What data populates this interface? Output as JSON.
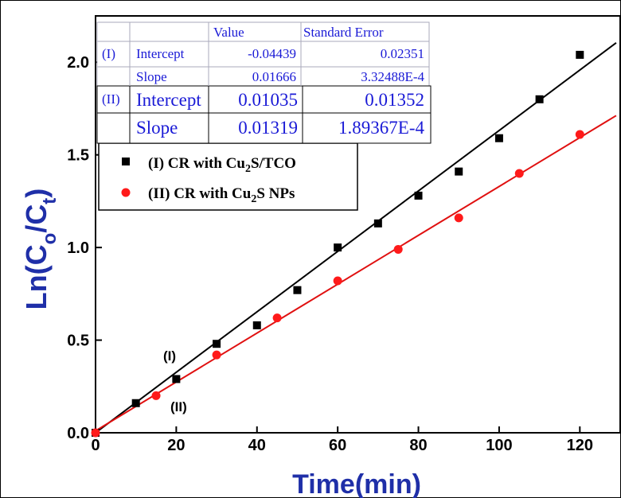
{
  "chart_data": {
    "type": "scatter",
    "xlabel": "Time(min)",
    "ylabel_parts": [
      "Ln(C",
      "o",
      "/C",
      "t",
      ")"
    ],
    "xlim": [
      0,
      130
    ],
    "ylim": [
      0,
      2.25
    ],
    "xticks": [
      0,
      20,
      40,
      60,
      80,
      100,
      120
    ],
    "yticks": [
      0.0,
      0.5,
      1.0,
      1.5,
      2.0
    ],
    "xtick_labels": [
      "0",
      "20",
      "40",
      "60",
      "80",
      100,
      120
    ],
    "ytick_labels": [
      "0.0",
      "0.5",
      "1.0",
      "1.5",
      "2.0"
    ],
    "series": [
      {
        "name_parts": [
          "(I) CR with Cu",
          "2",
          "S/TCO"
        ],
        "marker": "square",
        "color": "#000000",
        "x": [
          0,
          10,
          20,
          30,
          40,
          50,
          60,
          70,
          80,
          90,
          100,
          110,
          120
        ],
        "y": [
          0.0,
          0.16,
          0.29,
          0.48,
          0.58,
          0.77,
          1.0,
          1.13,
          1.28,
          1.41,
          1.59,
          1.8,
          2.04
        ],
        "fit": {
          "intercept": -0.04439,
          "slope": 0.01666
        }
      },
      {
        "name_parts": [
          "(II) CR with Cu",
          "2",
          "S NPs"
        ],
        "marker": "circle",
        "color": "#ff1a1a",
        "x": [
          0,
          15,
          30,
          45,
          60,
          75,
          90,
          105,
          120
        ],
        "y": [
          0.0,
          0.2,
          0.42,
          0.62,
          0.82,
          0.99,
          1.16,
          1.4,
          1.61
        ],
        "fit": {
          "intercept": 0.01035,
          "slope": 0.01319
        }
      }
    ],
    "fit_line_colors": {
      "I": "#000000",
      "II": "#e01010"
    },
    "annotations": [
      "(I)",
      "(II)"
    ],
    "fit_table": {
      "headers": [
        "Value",
        "Standard Error"
      ],
      "rows": [
        [
          "(I)",
          "Intercept",
          "-0.04439",
          "0.02351"
        ],
        [
          "",
          "Slope",
          "0.01666",
          "3.32488E-4"
        ],
        [
          "(II)",
          "Intercept",
          "0.01035",
          "0.01352"
        ],
        [
          "",
          "Slope",
          "0.01319",
          "1.89367E-4"
        ]
      ]
    },
    "grid": false,
    "legend_position": "upper-left",
    "axis_title_color": "#1f2fa8",
    "table_text_color": "#1a1ad6"
  }
}
